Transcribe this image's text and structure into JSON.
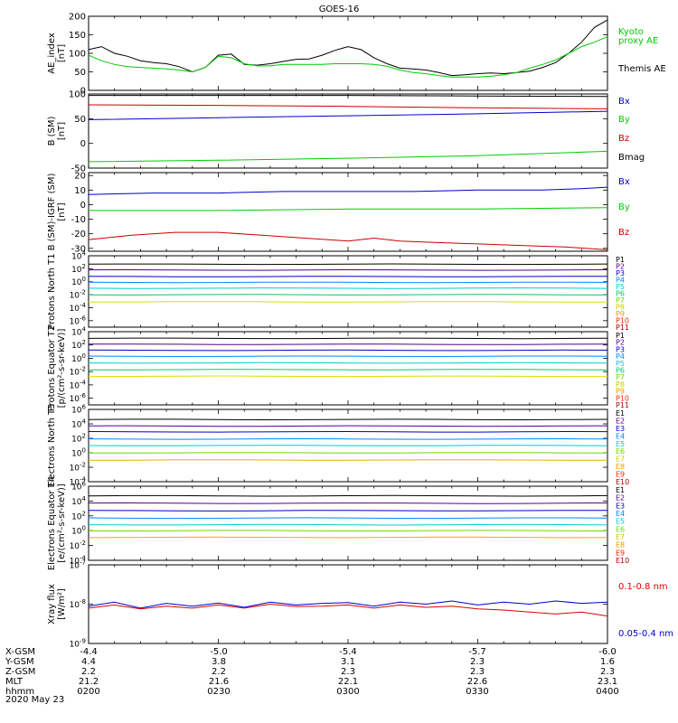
{
  "title": "GOES-16",
  "date": "2020 May 23",
  "axis_rows": [
    {
      "label": "X-GSM",
      "values": [
        "-4.4",
        "-5.0",
        "-5.4",
        "-5.7",
        "-6.0"
      ]
    },
    {
      "label": "Y-GSM",
      "values": [
        "4.4",
        "3.8",
        "3.1",
        "2.3",
        "1.6"
      ]
    },
    {
      "label": "Z-GSM",
      "values": [
        "2.2",
        "2.2",
        "2.3",
        "2.3",
        "2.3"
      ]
    },
    {
      "label": "MLT",
      "values": [
        "21.2",
        "21.6",
        "22.1",
        "22.6",
        "23.1"
      ]
    },
    {
      "label": "hhmm",
      "values": [
        "0200",
        "0230",
        "0300",
        "0330",
        "0400"
      ]
    }
  ],
  "chart_data": [
    {
      "type": "line",
      "ylabel": "AE_index [nT]",
      "ylim": [
        0,
        200
      ],
      "yticks": [
        "0",
        "50",
        "100",
        "150",
        "200"
      ],
      "legend": [
        {
          "text": "Kyoto",
          "color": "#00cc00"
        },
        {
          "text": "proxy AE",
          "color": "#00cc00"
        },
        {
          "text": "Themis AE",
          "color": "#000000"
        }
      ],
      "series": [
        {
          "name": "Themis AE",
          "color": "#000000",
          "x": [
            0,
            3,
            6,
            9,
            12,
            15,
            18,
            21,
            24,
            27,
            30,
            33,
            36,
            39,
            42,
            45,
            48,
            51,
            54,
            57,
            60,
            63,
            66,
            69,
            72,
            75,
            78,
            81,
            84,
            87,
            90,
            93,
            96,
            99,
            102,
            105,
            108,
            111,
            114,
            117,
            120
          ],
          "values": [
            110,
            118,
            100,
            92,
            80,
            75,
            72,
            64,
            50,
            62,
            95,
            98,
            70,
            68,
            72,
            78,
            84,
            85,
            95,
            108,
            118,
            110,
            88,
            72,
            60,
            58,
            55,
            48,
            40,
            42,
            45,
            47,
            45,
            48,
            52,
            62,
            75,
            100,
            130,
            170,
            190
          ]
        },
        {
          "name": "Kyoto proxy AE",
          "color": "#00cc00",
          "x": [
            0,
            3,
            6,
            9,
            12,
            15,
            18,
            21,
            24,
            27,
            30,
            33,
            36,
            39,
            42,
            45,
            48,
            51,
            54,
            57,
            60,
            63,
            66,
            69,
            72,
            75,
            78,
            81,
            84,
            87,
            90,
            93,
            96,
            99,
            102,
            105,
            108,
            111,
            114,
            117,
            120
          ],
          "values": [
            95,
            80,
            70,
            64,
            62,
            60,
            58,
            55,
            50,
            62,
            92,
            88,
            72,
            66,
            66,
            70,
            70,
            70,
            70,
            72,
            72,
            72,
            70,
            65,
            55,
            48,
            45,
            40,
            36,
            36,
            36,
            38,
            42,
            48,
            60,
            70,
            82,
            100,
            118,
            130,
            145
          ]
        }
      ]
    },
    {
      "type": "line",
      "ylabel": "B (SM) [nT]",
      "ylim": [
        -50,
        100
      ],
      "yticks": [
        "-50",
        "0",
        "50",
        "100"
      ],
      "legend": [
        {
          "text": "Bx",
          "color": "#0000cc"
        },
        {
          "text": "By",
          "color": "#00cc00"
        },
        {
          "text": "Bz",
          "color": "#cc0000"
        },
        {
          "text": "Bmag",
          "color": "#000000"
        }
      ],
      "series": [
        {
          "name": "Bmag",
          "color": "#000000",
          "x": [
            0,
            30,
            60,
            90,
            120
          ],
          "values": [
            97,
            97,
            97,
            96,
            95
          ]
        },
        {
          "name": "Bz",
          "color": "#cc0000",
          "x": [
            0,
            30,
            60,
            90,
            120
          ],
          "values": [
            78,
            77,
            75,
            72,
            70
          ]
        },
        {
          "name": "Bx",
          "color": "#0000cc",
          "x": [
            0,
            30,
            60,
            90,
            120
          ],
          "values": [
            48,
            52,
            56,
            60,
            65
          ]
        },
        {
          "name": "By",
          "color": "#00cc00",
          "x": [
            0,
            30,
            60,
            90,
            120
          ],
          "values": [
            -37,
            -34,
            -30,
            -25,
            -16
          ]
        }
      ]
    },
    {
      "type": "line",
      "ylabel": "B (SM)-IGRF (SM) [nT]",
      "ylim": [
        -32,
        22
      ],
      "yticks": [
        "-30",
        "-20",
        "-10",
        "0",
        "10",
        "20"
      ],
      "legend": [
        {
          "text": "Bx",
          "color": "#0000cc"
        },
        {
          "text": "By",
          "color": "#00cc00"
        },
        {
          "text": "Bz",
          "color": "#cc0000"
        }
      ],
      "series": [
        {
          "name": "Bx",
          "color": "#0000cc",
          "x": [
            0,
            15,
            30,
            45,
            60,
            75,
            90,
            105,
            114,
            120
          ],
          "values": [
            7,
            8,
            8,
            9,
            9,
            9,
            10,
            10,
            11,
            12
          ]
        },
        {
          "name": "By",
          "color": "#00cc00",
          "x": [
            0,
            30,
            60,
            90,
            120
          ],
          "values": [
            -4,
            -4,
            -3,
            -3,
            -2
          ]
        },
        {
          "name": "Bz",
          "color": "#cc0000",
          "x": [
            0,
            10,
            20,
            30,
            40,
            50,
            60,
            66,
            72,
            80,
            90,
            100,
            110,
            120
          ],
          "values": [
            -24,
            -21,
            -19,
            -19,
            -21,
            -23,
            -25,
            -23,
            -25,
            -26,
            -27,
            -28,
            -29,
            -31
          ]
        }
      ]
    },
    {
      "type": "line",
      "ylabel": "Protons North T1",
      "log": true,
      "ylim_exp": [
        -7,
        4
      ],
      "yticks": [
        "10^-6",
        "10^-4",
        "10^-2",
        "10^0",
        "10^2",
        "10^4"
      ],
      "legend": [
        {
          "text": "P1",
          "color": "#000000"
        },
        {
          "text": "P2",
          "color": "#550088"
        },
        {
          "text": "P3",
          "color": "#0000cc"
        },
        {
          "text": "P4",
          "color": "#0088ff"
        },
        {
          "text": "P5",
          "color": "#00cccc"
        },
        {
          "text": "P6",
          "color": "#00cc66"
        },
        {
          "text": "P7",
          "color": "#66dd00"
        },
        {
          "text": "P8",
          "color": "#cccc00"
        },
        {
          "text": "P9",
          "color": "#ee9900"
        },
        {
          "text": "P10",
          "color": "#ff2200"
        },
        {
          "text": "P11",
          "color": "#aa0000"
        }
      ],
      "levels": [
        {
          "name": "P1",
          "color": "#000000",
          "exp": 2.7
        },
        {
          "name": "P2",
          "color": "#550088",
          "exp": 1.8
        },
        {
          "name": "P3",
          "color": "#0000cc",
          "exp": 0.8
        },
        {
          "name": "P4",
          "color": "#0088ff",
          "exp": -0.1
        },
        {
          "name": "P5",
          "color": "#00cccc",
          "exp": -1.0
        },
        {
          "name": "P6",
          "color": "#00cc66",
          "exp": -2.0
        },
        {
          "name": "P7",
          "color": "#dddd00",
          "exp": -3.1
        }
      ]
    },
    {
      "type": "line",
      "ylabel": "Protons Equator T2 [p/(cm²-s-sr-keV)]",
      "log": true,
      "ylim_exp": [
        -7,
        4
      ],
      "yticks": [
        "10^-6",
        "10^-4",
        "10^-2",
        "10^0",
        "10^2",
        "10^4"
      ],
      "legend": [
        {
          "text": "P1",
          "color": "#000000"
        },
        {
          "text": "P2",
          "color": "#550088"
        },
        {
          "text": "P3",
          "color": "#0000cc"
        },
        {
          "text": "P4",
          "color": "#0088ff"
        },
        {
          "text": "P5",
          "color": "#00cccc"
        },
        {
          "text": "P6",
          "color": "#00cc66"
        },
        {
          "text": "P7",
          "color": "#66dd00"
        },
        {
          "text": "P8",
          "color": "#cccc00"
        },
        {
          "text": "P9",
          "color": "#ee9900"
        },
        {
          "text": "P10",
          "color": "#ff2200"
        },
        {
          "text": "P11",
          "color": "#aa0000"
        }
      ],
      "levels": [
        {
          "name": "P1",
          "color": "#000000",
          "exp": 3.0
        },
        {
          "name": "P2",
          "color": "#550088",
          "exp": 2.1
        },
        {
          "name": "P3",
          "color": "#0000cc",
          "exp": 1.2
        },
        {
          "name": "P4",
          "color": "#0088ff",
          "exp": 0.3
        },
        {
          "name": "P5",
          "color": "#00cccc",
          "exp": -0.7
        },
        {
          "name": "P6",
          "color": "#00cc66",
          "exp": -1.7
        },
        {
          "name": "P7",
          "color": "#dddd00",
          "exp": -2.7
        }
      ]
    },
    {
      "type": "line",
      "ylabel": "Electrons North T3",
      "log": true,
      "ylim_exp": [
        -4,
        6
      ],
      "yticks": [
        "10^-4",
        "10^-2",
        "10^0",
        "10^2",
        "10^4",
        "10^6"
      ],
      "legend": [
        {
          "text": "E1",
          "color": "#000000"
        },
        {
          "text": "E2",
          "color": "#550088"
        },
        {
          "text": "E3",
          "color": "#0000cc"
        },
        {
          "text": "E4",
          "color": "#0088ff"
        },
        {
          "text": "E5",
          "color": "#00cccc"
        },
        {
          "text": "E6",
          "color": "#66dd00"
        },
        {
          "text": "E7",
          "color": "#cccc00"
        },
        {
          "text": "E8",
          "color": "#ee9900"
        },
        {
          "text": "E9",
          "color": "#ff2200"
        },
        {
          "text": "E10",
          "color": "#aa0000"
        }
      ],
      "levels": [
        {
          "name": "E1",
          "color": "#000000",
          "exp": 4.6
        },
        {
          "name": "E2",
          "color": "#550088",
          "exp": 3.7
        },
        {
          "name": "E3",
          "color": "#0000cc",
          "exp": 2.9
        },
        {
          "name": "E4",
          "color": "#0088ff",
          "exp": 1.9
        },
        {
          "name": "E5",
          "color": "#00cccc",
          "exp": 1.0
        },
        {
          "name": "E6",
          "color": "#66dd00",
          "exp": 0.0
        },
        {
          "name": "E7",
          "color": "#eeaa00",
          "exp": -1.0
        }
      ]
    },
    {
      "type": "line",
      "ylabel": "Electrons Equator T4 [e/(cm²-s-sr-keV)]",
      "log": true,
      "ylim_exp": [
        -4,
        6
      ],
      "yticks": [
        "10^-4",
        "10^-2",
        "10^0",
        "10^2",
        "10^4",
        "10^6"
      ],
      "legend": [
        {
          "text": "E1",
          "color": "#000000"
        },
        {
          "text": "E2",
          "color": "#550088"
        },
        {
          "text": "E3",
          "color": "#0000cc"
        },
        {
          "text": "E4",
          "color": "#0088ff"
        },
        {
          "text": "E5",
          "color": "#00cccc"
        },
        {
          "text": "E6",
          "color": "#66dd00"
        },
        {
          "text": "E7",
          "color": "#cccc00"
        },
        {
          "text": "E8",
          "color": "#ee9900"
        },
        {
          "text": "E9",
          "color": "#ff2200"
        },
        {
          "text": "E10",
          "color": "#aa0000"
        }
      ],
      "levels": [
        {
          "name": "E1",
          "color": "#000000",
          "exp": 4.7
        },
        {
          "name": "E2",
          "color": "#550088",
          "exp": 3.7
        },
        {
          "name": "E3",
          "color": "#0000cc",
          "exp": 2.7
        },
        {
          "name": "E4",
          "color": "#0088ff",
          "exp": 1.7
        },
        {
          "name": "E5",
          "color": "#00cccc",
          "exp": 0.8
        },
        {
          "name": "E6",
          "color": "#66dd00",
          "exp": 0.0
        },
        {
          "name": "E7",
          "color": "#eeaa00",
          "exp": -0.9
        }
      ]
    },
    {
      "type": "line",
      "ylabel": "Xray flux [W/m²]",
      "log": true,
      "ylim_exp": [
        -9,
        -7
      ],
      "yticks": [
        "10^-9",
        "10^-8",
        "10^-7"
      ],
      "legend": [
        {
          "text": "0.1-0.8 nm",
          "color": "#dd0000"
        },
        {
          "text": "0.05-0.4 nm",
          "color": "#0000cc"
        }
      ],
      "series": [
        {
          "name": "0.05-0.4 nm",
          "color": "#0000cc",
          "x": [
            0,
            6,
            12,
            18,
            24,
            30,
            36,
            42,
            48,
            54,
            60,
            66,
            72,
            78,
            84,
            90,
            96,
            102,
            108,
            114,
            120
          ],
          "values": [
            -8.05,
            -7.95,
            -8.1,
            -7.98,
            -8.05,
            -7.97,
            -8.08,
            -7.95,
            -8.02,
            -7.98,
            -7.96,
            -8.05,
            -7.95,
            -8.0,
            -7.92,
            -8.02,
            -7.95,
            -8.0,
            -7.92,
            -7.98,
            -7.95
          ]
        },
        {
          "name": "0.1-0.8 nm",
          "color": "#dd0000",
          "x": [
            0,
            6,
            12,
            18,
            24,
            30,
            36,
            42,
            48,
            54,
            60,
            66,
            72,
            78,
            84,
            90,
            96,
            102,
            108,
            114,
            120
          ],
          "values": [
            -8.1,
            -8.02,
            -8.12,
            -8.05,
            -8.1,
            -8.02,
            -8.1,
            -8.0,
            -8.06,
            -8.05,
            -8.02,
            -8.1,
            -8.02,
            -8.08,
            -8.05,
            -8.12,
            -8.15,
            -8.2,
            -8.25,
            -8.2,
            -8.3
          ]
        }
      ]
    }
  ]
}
